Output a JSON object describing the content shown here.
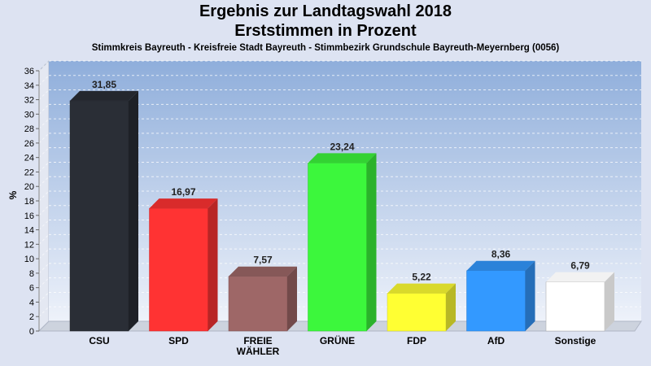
{
  "header": {
    "title_line1": "Ergebnis zur Landtagswahl 2018",
    "title_line2": "Erststimmen in Prozent",
    "subtitle": "Stimmkreis Bayreuth - Kreisfreie Stadt Bayreuth - Stimmbezirk Grundschule Bayreuth-Meyernberg (0056)"
  },
  "chart_data": {
    "type": "bar",
    "title": "Ergebnis zur Landtagswahl 2018 Erststimmen in Prozent",
    "subtitle": "Stimmkreis Bayreuth - Kreisfreie Stadt Bayreuth - Stimmbezirk Grundschule Bayreuth-Meyernberg (0056)",
    "ylabel": "%",
    "ylim": [
      0,
      36
    ],
    "yticks": [
      0,
      2,
      4,
      6,
      8,
      10,
      12,
      14,
      16,
      18,
      20,
      22,
      24,
      26,
      28,
      30,
      32,
      34,
      36
    ],
    "grid": true,
    "categories": [
      {
        "label": [
          "CSU"
        ],
        "value": 31.85,
        "value_label": "31,85",
        "color": "#2a2e36"
      },
      {
        "label": [
          "SPD"
        ],
        "value": 16.97,
        "value_label": "16,97",
        "color": "#ff3333"
      },
      {
        "label": [
          "FREIE",
          "WÄHLER"
        ],
        "value": 7.57,
        "value_label": "7,57",
        "color": "#9e6767"
      },
      {
        "label": [
          "GRÜNE"
        ],
        "value": 23.24,
        "value_label": "23,24",
        "color": "#3cf73c"
      },
      {
        "label": [
          "FDP"
        ],
        "value": 5.22,
        "value_label": "5,22",
        "color": "#ffff33"
      },
      {
        "label": [
          "AfD"
        ],
        "value": 8.36,
        "value_label": "8,36",
        "color": "#3399ff"
      },
      {
        "label": [
          "Sonstige"
        ],
        "value": 6.79,
        "value_label": "6,79",
        "color": "#ffffff"
      }
    ]
  }
}
